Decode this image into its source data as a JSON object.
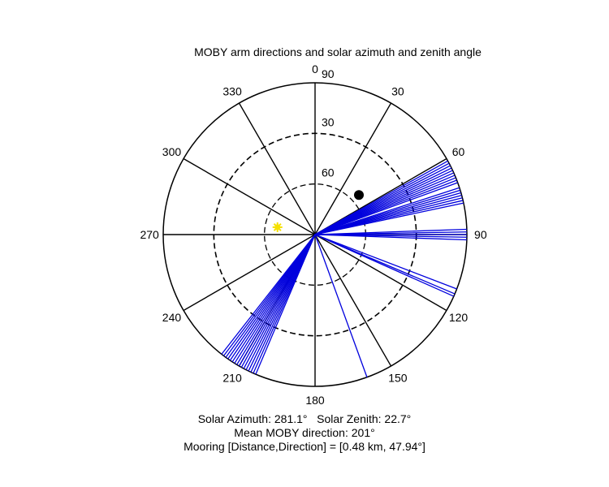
{
  "chart_data": {
    "type": "polar",
    "title": "MOBY arm directions and solar azimuth and zenith angle",
    "orientation": "clockwise, 0 at top",
    "angle_ticks": [
      "0",
      "30",
      "60",
      "90",
      "120",
      "150",
      "180",
      "210",
      "240",
      "270",
      "300",
      "330"
    ],
    "radial_ticks": [
      "30",
      "60",
      "90"
    ],
    "radial_range": [
      0,
      90
    ],
    "radial_axis": "zenith angle, 90 at center, 0 at outer ring",
    "arm_color": "#0000dd",
    "arm_directions": [
      61,
      62,
      63,
      64,
      65,
      66,
      67,
      68,
      69,
      70,
      72,
      73,
      74,
      75,
      76,
      77,
      78,
      88,
      89,
      90,
      91,
      92,
      111,
      113,
      114,
      160,
      203,
      204,
      205,
      206,
      207,
      208,
      209,
      210,
      211,
      212,
      213,
      214,
      215,
      216,
      217,
      218
    ],
    "solar_point": {
      "azimuth": 281.1,
      "radial_value": 67.3,
      "color": "#f5e000"
    },
    "mooring_point": {
      "direction": 47.94,
      "radial_value": 55,
      "color": "#000000"
    }
  },
  "captions": {
    "line1": "Solar Azimuth: 281.1°   Solar Zenith: 22.7°",
    "line2": "Mean MOBY direction: 201°",
    "line3": "Mooring [Distance,Direction] = [0.48 km, 47.94°]"
  }
}
